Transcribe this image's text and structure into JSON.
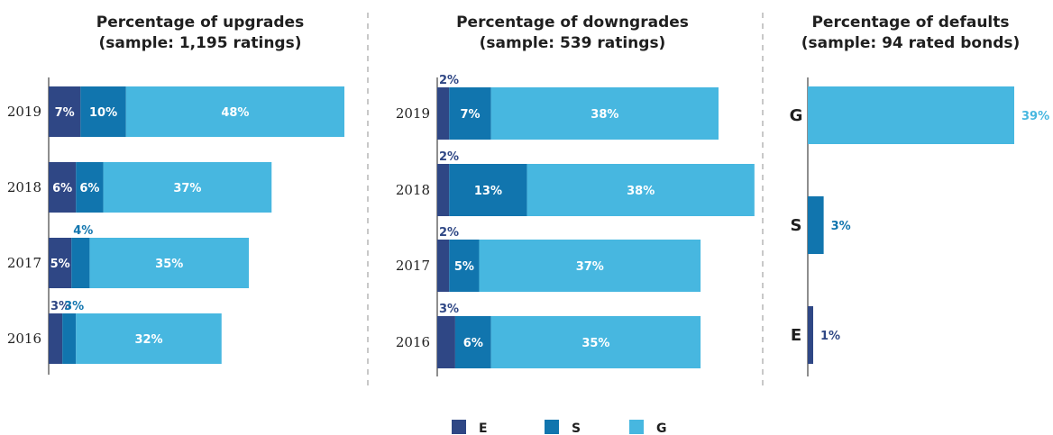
{
  "colors": {
    "E": "#2f4785",
    "S": "#1175ae",
    "G": "#47b7e0",
    "axis": "#444444",
    "divider": "#b5b5b5"
  },
  "legend": [
    {
      "key": "E",
      "label": "E"
    },
    {
      "key": "S",
      "label": "S"
    },
    {
      "key": "G",
      "label": "G"
    }
  ],
  "chart_data": [
    {
      "type": "bar",
      "orientation": "horizontal",
      "stacked": true,
      "title": "Percentage of upgrades",
      "subtitle": "(sample: 1,195 ratings)",
      "categories": [
        "2019",
        "2018",
        "2017",
        "2016"
      ],
      "series": [
        {
          "name": "E",
          "values": [
            7,
            6,
            5,
            3
          ]
        },
        {
          "name": "S",
          "values": [
            10,
            6,
            4,
            3
          ]
        },
        {
          "name": "G",
          "values": [
            48,
            37,
            35,
            32
          ]
        }
      ]
    },
    {
      "type": "bar",
      "orientation": "horizontal",
      "stacked": true,
      "title": "Percentage of downgrades",
      "subtitle": "(sample: 539 ratings)",
      "categories": [
        "2019",
        "2018",
        "2017",
        "2016"
      ],
      "series": [
        {
          "name": "E",
          "values": [
            2,
            2,
            2,
            3
          ]
        },
        {
          "name": "S",
          "values": [
            7,
            13,
            5,
            6
          ]
        },
        {
          "name": "G",
          "values": [
            38,
            38,
            37,
            35
          ]
        }
      ]
    },
    {
      "type": "bar",
      "orientation": "horizontal",
      "stacked": false,
      "title": "Percentage of defaults",
      "subtitle": "(sample: 94 rated bonds)",
      "categories": [
        "G",
        "S",
        "E"
      ],
      "values": [
        39,
        3,
        1
      ]
    }
  ]
}
